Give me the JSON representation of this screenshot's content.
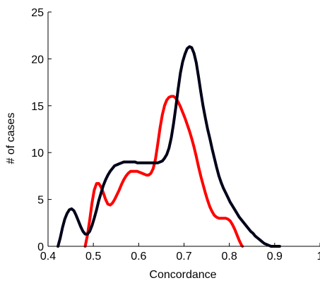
{
  "chart_data": {
    "type": "line",
    "title": "",
    "xlabel": "Concordance",
    "ylabel": "# of cases",
    "xlim": [
      0.4,
      1.0
    ],
    "ylim": [
      0,
      25
    ],
    "xticks": [
      0.4,
      0.5,
      0.6,
      0.7,
      0.8,
      0.9,
      1
    ],
    "xtick_labels": [
      "0.4",
      "0.5",
      "0.6",
      "0.7",
      "0.8",
      "0.9",
      "1"
    ],
    "yticks": [
      0,
      5,
      10,
      15,
      20,
      25
    ],
    "ytick_labels": [
      "0",
      "5",
      "10",
      "15",
      "20",
      "25"
    ],
    "grid": false,
    "legend": "none",
    "series": [
      {
        "color": "#ff0000",
        "x": [
          0.482,
          0.487,
          0.492,
          0.497,
          0.502,
          0.507,
          0.512,
          0.517,
          0.522,
          0.527,
          0.532,
          0.537,
          0.542,
          0.547,
          0.552,
          0.557,
          0.562,
          0.567,
          0.572,
          0.577,
          0.582,
          0.587,
          0.592,
          0.597,
          0.602,
          0.607,
          0.612,
          0.617,
          0.622,
          0.627,
          0.632,
          0.637,
          0.642,
          0.647,
          0.652,
          0.657,
          0.662,
          0.667,
          0.672,
          0.677,
          0.682,
          0.687,
          0.692,
          0.697,
          0.702,
          0.707,
          0.712,
          0.717,
          0.722,
          0.727,
          0.732,
          0.737,
          0.742,
          0.747,
          0.752,
          0.757,
          0.762,
          0.767,
          0.772,
          0.777,
          0.782,
          0.787,
          0.792,
          0.797,
          0.802,
          0.807,
          0.812,
          0.817,
          0.822,
          0.827,
          0.829
        ],
        "y": [
          0.0,
          1.2,
          2.8,
          4.6,
          6.0,
          6.7,
          6.7,
          6.3,
          5.7,
          5.0,
          4.5,
          4.4,
          4.6,
          5.0,
          5.5,
          6.0,
          6.6,
          7.1,
          7.5,
          7.8,
          8.0,
          8.0,
          8.0,
          8.0,
          7.9,
          7.8,
          7.7,
          7.6,
          7.6,
          7.8,
          8.3,
          9.3,
          10.9,
          12.6,
          14.0,
          15.0,
          15.6,
          15.9,
          16.0,
          16.0,
          15.8,
          15.4,
          14.9,
          14.3,
          13.7,
          13.0,
          12.3,
          11.5,
          10.6,
          9.6,
          8.5,
          7.5,
          6.6,
          5.7,
          4.9,
          4.2,
          3.7,
          3.3,
          3.1,
          3.0,
          3.0,
          3.0,
          3.0,
          2.9,
          2.7,
          2.3,
          1.8,
          1.2,
          0.6,
          0.1,
          0.0
        ]
      },
      {
        "color": "#00001a",
        "x": [
          0.422,
          0.427,
          0.432,
          0.437,
          0.442,
          0.447,
          0.452,
          0.457,
          0.462,
          0.467,
          0.472,
          0.477,
          0.482,
          0.487,
          0.492,
          0.497,
          0.502,
          0.507,
          0.512,
          0.517,
          0.522,
          0.527,
          0.532,
          0.537,
          0.542,
          0.547,
          0.552,
          0.557,
          0.562,
          0.567,
          0.572,
          0.577,
          0.582,
          0.587,
          0.592,
          0.597,
          0.602,
          0.607,
          0.612,
          0.617,
          0.622,
          0.627,
          0.632,
          0.637,
          0.642,
          0.647,
          0.652,
          0.657,
          0.662,
          0.667,
          0.672,
          0.677,
          0.682,
          0.687,
          0.692,
          0.697,
          0.702,
          0.707,
          0.712,
          0.717,
          0.722,
          0.727,
          0.732,
          0.737,
          0.742,
          0.747,
          0.752,
          0.757,
          0.762,
          0.767,
          0.772,
          0.777,
          0.782,
          0.787,
          0.792,
          0.797,
          0.802,
          0.807,
          0.812,
          0.817,
          0.822,
          0.827,
          0.832,
          0.837,
          0.842,
          0.847,
          0.852,
          0.857,
          0.862,
          0.867,
          0.872,
          0.877,
          0.882,
          0.887,
          0.892,
          0.897,
          0.902,
          0.907,
          0.911
        ],
        "y": [
          0.0,
          0.9,
          2.0,
          2.9,
          3.5,
          3.9,
          4.0,
          3.8,
          3.3,
          2.7,
          2.1,
          1.6,
          1.3,
          1.3,
          1.6,
          2.2,
          3.0,
          3.9,
          4.9,
          5.7,
          6.5,
          7.1,
          7.6,
          8.0,
          8.3,
          8.6,
          8.7,
          8.8,
          8.9,
          9.0,
          9.0,
          9.0,
          9.0,
          9.0,
          9.0,
          8.9,
          8.9,
          8.9,
          8.9,
          8.9,
          8.9,
          8.9,
          8.9,
          8.9,
          8.9,
          9.0,
          9.1,
          9.4,
          9.8,
          10.5,
          11.6,
          13.1,
          14.9,
          16.8,
          18.5,
          19.7,
          20.5,
          21.1,
          21.3,
          21.2,
          20.6,
          19.6,
          18.1,
          16.5,
          15.0,
          13.7,
          12.5,
          11.5,
          10.4,
          9.4,
          8.4,
          7.5,
          6.8,
          6.2,
          5.7,
          5.2,
          4.7,
          4.3,
          3.9,
          3.5,
          3.1,
          2.8,
          2.5,
          2.2,
          1.9,
          1.6,
          1.4,
          1.1,
          0.9,
          0.7,
          0.5,
          0.3,
          0.2,
          0.1,
          0.0,
          0.0,
          0.0,
          0.0,
          0.0
        ]
      }
    ]
  }
}
